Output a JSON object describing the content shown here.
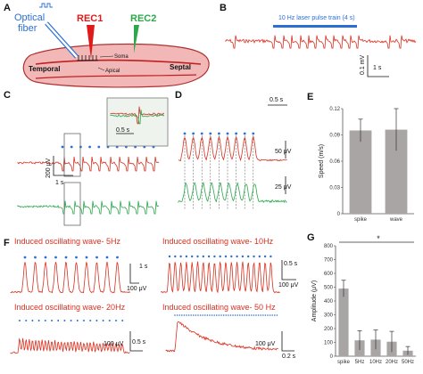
{
  "panel_labels": [
    "A",
    "B",
    "C",
    "D",
    "E",
    "F",
    "G"
  ],
  "panelA": {
    "optical_fiber": "Optical\nfiber",
    "rec1": "REC1",
    "rec2": "REC2",
    "temporal": "Temporal",
    "septal": "Septal",
    "soma": "Soma",
    "apical": "Apical"
  },
  "panelB": {
    "stim_label": "10 Hz laser pulse train (4 s)",
    "scale_v": "0.1 mV",
    "scale_t": "1 s"
  },
  "panelC": {
    "inset_scale": "0.5 s",
    "scale_v": "200 μV",
    "scale_t": "1 s"
  },
  "panelD": {
    "scale_t": "0.5 s",
    "scale_v1": "50 μV",
    "scale_v2": "25 μV"
  },
  "panelF": {
    "titles": [
      "Induced oscillating wave- 5Hz",
      "Induced oscillating wave- 10Hz",
      "Induced oscillating wave- 20Hz",
      "Induced oscillating wave- 50 Hz"
    ],
    "scales": [
      {
        "v": "100 μV",
        "t": "1 s"
      },
      {
        "v": "100 μV",
        "t": "0.5 s"
      },
      {
        "v": "100 μV",
        "t": "0.5 s"
      },
      {
        "v": "100 μV",
        "t": "0.2 s"
      }
    ]
  },
  "colors": {
    "red": "#d93020",
    "green": "#2aa84a",
    "blue": "#2a6fd6",
    "bar": "#a9a5a5",
    "tissue": "#f2b8b8"
  },
  "chart_data": [
    {
      "type": "bar",
      "panel": "E",
      "categories": [
        "spike",
        "wave"
      ],
      "values": [
        0.103,
        0.104
      ],
      "errors": [
        0.014,
        0.026
      ],
      "ylabel": "Speed (m/s)",
      "ylim": [
        0,
        0.13
      ],
      "yticks": [
        "0",
        "0.03",
        "0.06",
        "0.09",
        "0.12"
      ]
    },
    {
      "type": "bar",
      "panel": "G",
      "categories": [
        "spike",
        "5Hz",
        "10Hz",
        "20Hz",
        "50Hz"
      ],
      "values": [
        490,
        115,
        120,
        105,
        40
      ],
      "errors": [
        60,
        70,
        70,
        75,
        30
      ],
      "ylabel": "Amplitude (μV)",
      "ylim": [
        0,
        800
      ],
      "yticks": [
        "0",
        "100",
        "200",
        "300",
        "400",
        "500",
        "600",
        "700",
        "800"
      ],
      "annotation": "*"
    }
  ]
}
